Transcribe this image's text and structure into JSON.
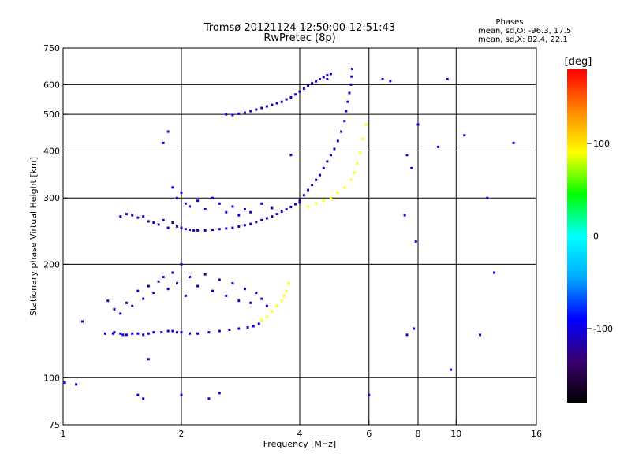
{
  "chart_data": {
    "type": "scatter",
    "title": "Tromsø 20121124 12:50:00-12:51:43",
    "subtitle": "RwPretec (8p)",
    "xlabel": "Frequency [MHz]",
    "ylabel": "Stationary phase Virtual Height [km]",
    "x_scale": "log",
    "y_scale": "log",
    "xlim": [
      1,
      16
    ],
    "ylim": [
      75,
      750
    ],
    "x_ticks": [
      {
        "value": 1,
        "label": "1"
      },
      {
        "value": 2,
        "label": "2"
      },
      {
        "value": 4,
        "label": "4"
      },
      {
        "value": 6,
        "label": "6"
      },
      {
        "value": 8,
        "label": "8"
      },
      {
        "value": 10,
        "label": "10"
      },
      {
        "value": 16,
        "label": "16"
      }
    ],
    "x_gridlines": [
      2,
      4,
      6,
      8,
      10
    ],
    "y_ticks": [
      {
        "value": 75,
        "label": "75"
      },
      {
        "value": 100,
        "label": "100"
      },
      {
        "value": 200,
        "label": "200"
      },
      {
        "value": 300,
        "label": "300"
      },
      {
        "value": 400,
        "label": "400"
      },
      {
        "value": 500,
        "label": "500"
      },
      {
        "value": 600,
        "label": "600"
      },
      {
        "value": 750,
        "label": "750"
      }
    ],
    "y_gridlines": [
      100,
      200,
      300,
      400,
      500,
      600
    ],
    "grid": true,
    "colorbar": {
      "label": "[deg]",
      "range": [
        -180,
        180
      ],
      "ticks": [
        {
          "value": 100,
          "label": "100"
        },
        {
          "value": 0,
          "label": "0"
        },
        {
          "value": -100,
          "label": "-100"
        }
      ],
      "colors": [
        "#000000",
        "#3a0070",
        "#0000ff",
        "#00aaff",
        "#00ffff",
        "#00ff00",
        "#ffff00",
        "#ff8800",
        "#ff0000"
      ]
    },
    "phase_stats": {
      "heading": "Phases",
      "line1": "mean, sd,O: -96.3, 17.5",
      "line2": "mean, sd,X:  82.4, 22.1"
    },
    "series": [
      {
        "x": [
          1.01,
          1.08,
          1.12,
          1.28,
          1.34,
          1.35,
          1.4,
          1.42,
          1.45,
          1.5,
          1.55,
          1.6,
          1.65,
          1.7,
          1.78,
          1.85,
          1.9,
          1.95,
          2.0,
          2.1,
          2.2,
          2.35,
          2.5,
          2.65,
          2.8,
          2.95,
          3.05,
          3.15
        ],
        "y": [
          97,
          96,
          141,
          131,
          131,
          132,
          131,
          130,
          130,
          131,
          131,
          130,
          131,
          132,
          132,
          133,
          133,
          132,
          132,
          131,
          131,
          132,
          133,
          134,
          135,
          136,
          137,
          139
        ],
        "phase": -100
      },
      {
        "x": [
          1.3,
          1.35,
          1.4,
          1.45,
          1.5,
          1.55,
          1.6,
          1.65,
          1.7,
          1.75,
          1.8,
          1.85,
          1.9,
          1.95,
          2.0,
          2.05,
          2.1,
          2.2,
          2.3,
          2.4,
          2.5,
          2.6,
          2.7,
          2.8,
          2.9,
          3.0,
          3.1,
          3.2,
          3.3
        ],
        "y": [
          160,
          152,
          148,
          158,
          155,
          170,
          162,
          175,
          168,
          180,
          185,
          172,
          190,
          178,
          200,
          165,
          185,
          175,
          188,
          170,
          182,
          165,
          178,
          160,
          172,
          158,
          168,
          162,
          155
        ],
        "phase": -110
      },
      {
        "x": [
          1.4,
          1.45,
          1.5,
          1.55,
          1.6,
          1.65,
          1.7,
          1.75,
          1.8,
          1.85,
          1.9,
          1.95,
          2.0,
          2.05,
          2.1,
          2.15,
          2.2,
          2.3,
          2.4,
          2.5,
          2.6,
          2.7,
          2.8,
          2.9,
          3.0,
          3.1,
          3.2,
          3.3,
          3.4,
          3.5,
          3.6,
          3.7,
          3.8,
          3.9,
          4.0
        ],
        "y": [
          268,
          272,
          270,
          266,
          268,
          260,
          258,
          255,
          262,
          250,
          258,
          252,
          250,
          248,
          247,
          246,
          246,
          246,
          247,
          248,
          249,
          250,
          252,
          254,
          256,
          259,
          262,
          265,
          268,
          272,
          276,
          280,
          284,
          289,
          292
        ],
        "phase": -110
      },
      {
        "x": [
          1.9,
          1.95,
          2.0,
          2.05,
          2.1,
          2.2,
          2.3,
          2.4,
          2.5,
          2.6,
          2.7,
          2.8,
          2.9,
          3.0,
          3.2,
          3.4
        ],
        "y": [
          320,
          300,
          310,
          290,
          285,
          295,
          280,
          300,
          290,
          275,
          285,
          270,
          280,
          275,
          290,
          282
        ],
        "phase": -100
      },
      {
        "x": [
          4.0,
          4.1,
          4.2,
          4.3,
          4.4,
          4.5,
          4.6,
          4.7,
          4.8,
          4.9,
          5.0,
          5.1,
          5.2,
          5.25,
          5.3,
          5.35,
          5.4,
          5.42,
          5.44
        ],
        "y": [
          295,
          305,
          315,
          325,
          335,
          345,
          360,
          375,
          390,
          405,
          425,
          450,
          480,
          510,
          540,
          570,
          600,
          630,
          660
        ],
        "phase": -110
      },
      {
        "x": [
          4.2,
          4.4,
          4.6,
          4.8,
          5.0,
          5.2,
          5.4,
          5.5,
          5.6,
          5.7,
          5.8,
          5.9
        ],
        "y": [
          285,
          290,
          295,
          300,
          310,
          320,
          335,
          350,
          370,
          395,
          430,
          470
        ],
        "phase": 90
      },
      {
        "x": [
          2.6,
          2.7,
          2.8,
          2.9,
          3.0,
          3.1,
          3.2,
          3.3,
          3.4,
          3.5,
          3.6,
          3.7,
          3.8,
          3.9,
          4.0,
          4.1,
          4.2,
          4.3,
          4.4,
          4.5,
          4.6,
          4.7,
          4.8
        ],
        "y": [
          500,
          498,
          502,
          505,
          510,
          515,
          520,
          525,
          530,
          535,
          540,
          548,
          555,
          565,
          575,
          585,
          595,
          605,
          612,
          620,
          628,
          635,
          640
        ],
        "phase": -105
      },
      {
        "x": [
          3.2,
          3.3,
          3.4,
          3.5,
          3.6,
          3.65,
          3.7,
          3.75
        ],
        "y": [
          142,
          145,
          150,
          155,
          160,
          165,
          170,
          178
        ],
        "phase": 90
      },
      {
        "x": [
          1.55,
          1.6,
          1.65,
          1.8,
          1.85,
          2.0,
          2.35,
          2.5,
          3.8,
          4.7,
          6.0,
          6.5,
          6.8,
          7.4,
          7.5,
          7.5,
          7.7,
          7.8,
          7.9,
          8.0,
          9.0,
          9.5,
          9.7,
          10.5,
          11.5,
          12.0,
          12.5,
          14.0
        ],
        "y": [
          90,
          88,
          112,
          420,
          450,
          90,
          88,
          91,
          390,
          620,
          90,
          620,
          613,
          270,
          130,
          390,
          360,
          135,
          230,
          470,
          410,
          620,
          105,
          440,
          130,
          300,
          190,
          420
        ],
        "phase": -100
      }
    ]
  }
}
